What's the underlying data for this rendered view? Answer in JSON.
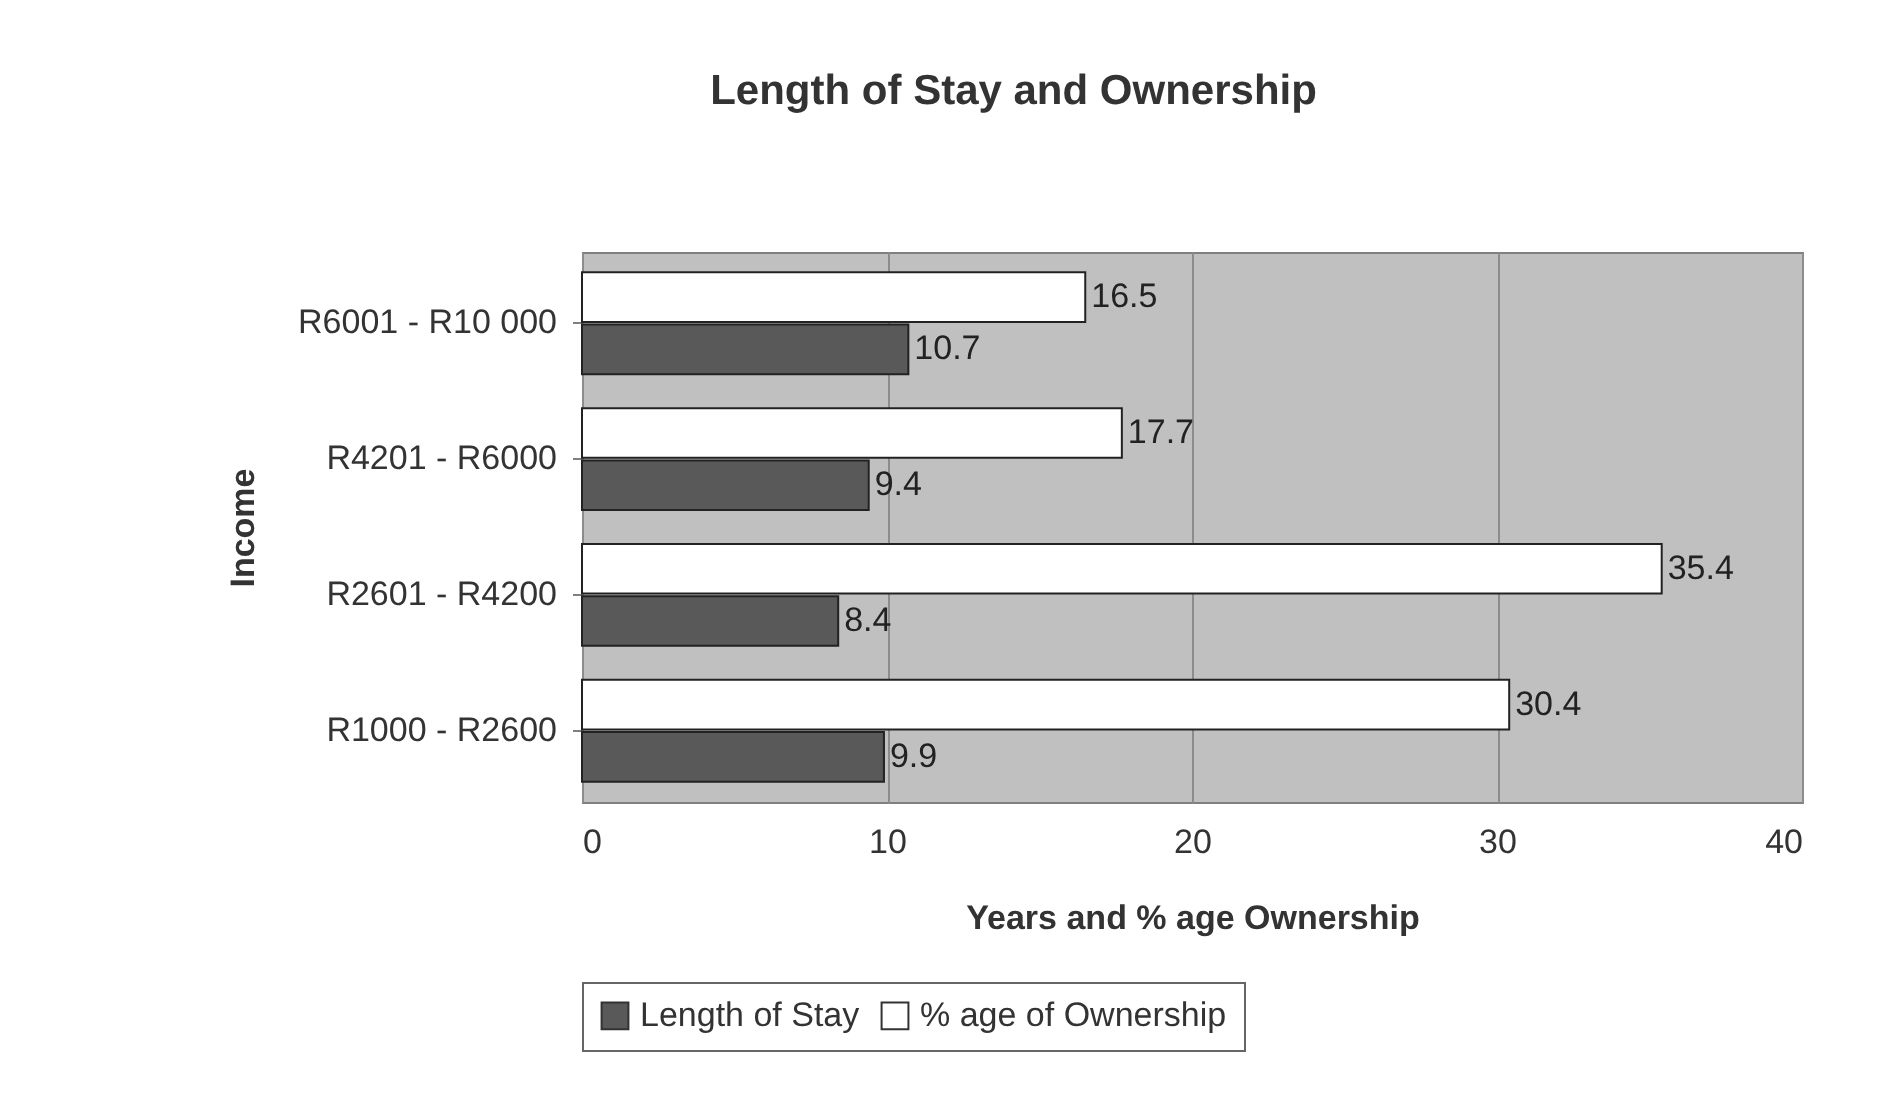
{
  "chart_data": {
    "type": "bar",
    "orientation": "horizontal",
    "title": "Length of Stay and Ownership",
    "xlabel": "Years and % age Ownership",
    "ylabel": "Income",
    "categories": [
      "R6001 - R10 000",
      "R4201 - R6000",
      "R2601 - R4200",
      "R1000 - R2600"
    ],
    "series": [
      {
        "name": "Length of Stay",
        "color": "#595959",
        "values": [
          10.7,
          9.4,
          8.4,
          9.9
        ]
      },
      {
        "name": "% age of Ownership",
        "color": "#ffffff",
        "values": [
          16.5,
          17.7,
          35.4,
          30.4
        ]
      }
    ],
    "xlim": [
      0,
      40
    ],
    "xticks": [
      0,
      10,
      20,
      30,
      40
    ],
    "grid": "x",
    "legend": "bottom",
    "data_labels": true
  }
}
